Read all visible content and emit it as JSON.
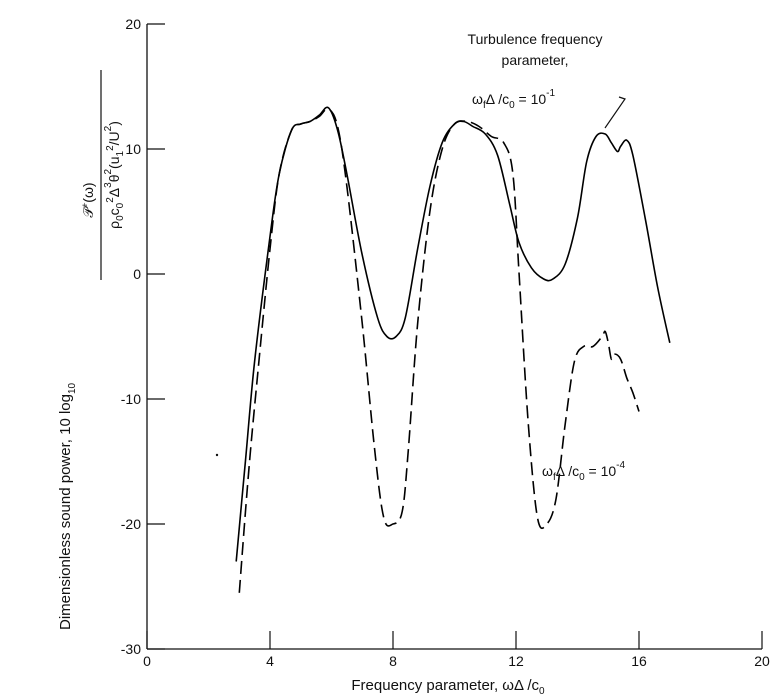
{
  "chart_data": {
    "type": "line",
    "xlabel": "Frequency parameter,  ωΔ/c₀",
    "ylabel": "Dimensionless sound power, 10 log₁₀ 𝒫⁺(ω) / ρ₀c₀²Δ³θ²(u₁²/U²)",
    "xlim": [
      0,
      20
    ],
    "ylim": [
      -30,
      20
    ],
    "x_ticks": [
      0,
      4,
      8,
      12,
      16,
      20
    ],
    "y_ticks": [
      -30,
      -20,
      -10,
      0,
      10,
      20
    ],
    "x_tick_labels": [
      "0",
      "4",
      "8",
      "12",
      "16",
      "20"
    ],
    "y_tick_labels": [
      "-30",
      "-20",
      "-10",
      "0",
      "10",
      "20"
    ],
    "grid": false,
    "series": [
      {
        "name": "ω_fΔ/c₀ = 10⁻¹",
        "style": "solid",
        "color": "#000000",
        "x": [
          2.9,
          3.2,
          3.5,
          4.0,
          4.3,
          4.7,
          5.0,
          5.3,
          5.6,
          5.9,
          6.2,
          6.5,
          7.0,
          7.5,
          7.8,
          8.1,
          8.4,
          8.8,
          9.2,
          9.6,
          10.0,
          10.3,
          10.6,
          11.0,
          11.4,
          11.8,
          12.1,
          12.5,
          12.9,
          13.2,
          13.6,
          14.0,
          14.3,
          14.6,
          14.9,
          15.1,
          15.3,
          15.4,
          15.6,
          15.8,
          16.2,
          16.6,
          17.0
        ],
        "y": [
          -23,
          -15,
          -7,
          3,
          8,
          11.5,
          12,
          12.2,
          12.7,
          13.3,
          11.5,
          8,
          1.5,
          -3.5,
          -5,
          -5,
          -3.5,
          2,
          7,
          10.5,
          12,
          12.2,
          11.8,
          11.2,
          9.5,
          5.5,
          2.5,
          0.5,
          -0.4,
          -0.4,
          0.8,
          4.5,
          9,
          11,
          11.2,
          10.5,
          9.8,
          10.2,
          10.7,
          9.5,
          4.5,
          -1,
          -5.5
        ]
      },
      {
        "name": "ω_fΔ/c₀ = 10⁻⁴",
        "style": "dashed",
        "color": "#000000",
        "x": [
          3.0,
          3.3,
          3.6,
          4.0,
          4.3,
          4.7,
          5.0,
          5.3,
          5.6,
          5.9,
          6.2,
          6.5,
          7.0,
          7.4,
          7.7,
          8.0,
          8.3,
          8.5,
          8.8,
          9.2,
          9.6,
          10.0,
          10.4,
          10.8,
          11.2,
          11.6,
          11.9,
          12.1,
          12.4,
          12.7,
          13.0,
          13.3,
          13.6,
          13.9,
          14.2,
          14.5,
          14.8,
          14.9,
          15.0,
          15.1,
          15.2,
          15.4,
          15.6,
          15.8,
          16.0
        ],
        "y": [
          -25.5,
          -16,
          -8,
          2,
          8,
          11.5,
          12,
          12.2,
          12.6,
          13.2,
          11.8,
          7,
          -4,
          -14,
          -19.5,
          -20,
          -19,
          -14,
          -4,
          5,
          10,
          12,
          12.2,
          11.8,
          11,
          10.5,
          8,
          0,
          -12,
          -19.5,
          -20,
          -18,
          -12,
          -7,
          -5.8,
          -5.8,
          -5,
          -4.6,
          -5.5,
          -6.8,
          -6.4,
          -6.8,
          -8.3,
          -9.5,
          -11
        ]
      }
    ],
    "annotations": {
      "heading_line1": "Turbulence frequency",
      "heading_line2": "parameter,",
      "solid_label": {
        "main": "ω",
        "sub1": "f",
        "mid": "Δ /c",
        "sub2": "0",
        "eq": " = 10",
        "exp": "-1"
      },
      "dashed_label": {
        "main": "ω",
        "sub1": "f",
        "mid": "Δ /c",
        "sub2": "0",
        "eq": " = 10",
        "exp": "-4"
      }
    }
  }
}
